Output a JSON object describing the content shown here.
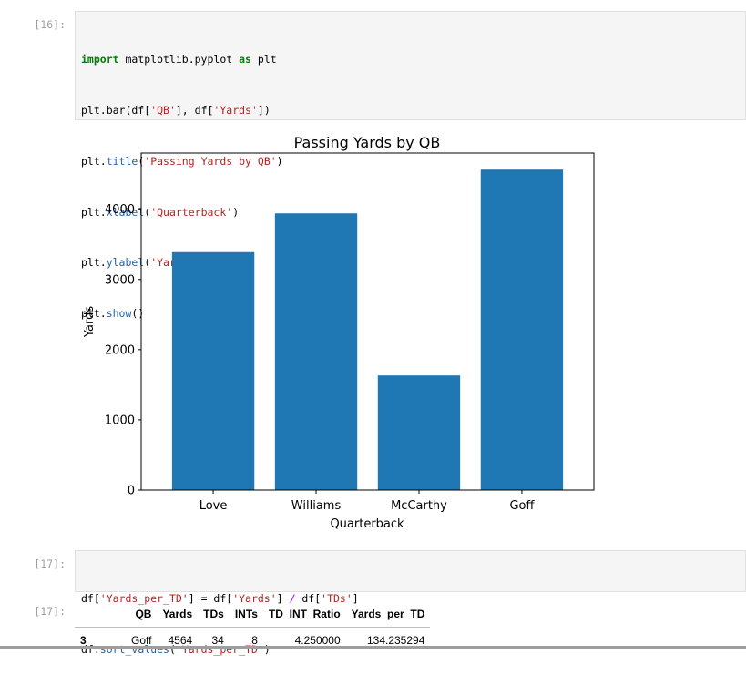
{
  "cells": {
    "cell16": {
      "prompt": "[16]:",
      "code": {
        "l1_kw1": "import",
        "l1_mid": " matplotlib.pyplot ",
        "l1_kw2": "as",
        "l1_end": " plt",
        "l2_a": "plt.bar(df[",
        "l2_s1": "'QB'",
        "l2_b": "], df[",
        "l2_s2": "'Yards'",
        "l2_c": "])",
        "l3_a": "plt.",
        "l3_fn": "title",
        "l3_b": "(",
        "l3_s": "'Passing Yards by QB'",
        "l3_c": ")",
        "l4_a": "plt.",
        "l4_fn": "xlabel",
        "l4_b": "(",
        "l4_s": "'Quarterback'",
        "l4_c": ")",
        "l5_a": "plt.",
        "l5_fn": "ylabel",
        "l5_b": "(",
        "l5_s": "'Yards'",
        "l5_c": ")",
        "l6_a": "plt.",
        "l6_fn": "show",
        "l6_b": "()"
      }
    },
    "cell17_in": {
      "prompt": "[17]:",
      "code": {
        "l1_a": "df[",
        "l1_s1": "'Yards_per_TD'",
        "l1_b": "] = df[",
        "l1_s2": "'Yards'",
        "l1_c": "] ",
        "l1_op": "/",
        "l1_d": " df[",
        "l1_s3": "'TDs'",
        "l1_e": "]",
        "l2_a": "df.",
        "l2_fn": "sort_values",
        "l2_b": "(",
        "l2_s": "'Yards_per_TD'",
        "l2_c": ")"
      }
    },
    "cell17_out": {
      "prompt": "[17]:",
      "table": {
        "columns": [
          "",
          "QB",
          "Yards",
          "TDs",
          "INTs",
          "TD_INT_Ratio",
          "Yards_per_TD"
        ],
        "rows": [
          [
            "3",
            "Goff",
            "4564",
            "34",
            "8",
            "4.250000",
            "134.235294"
          ]
        ]
      }
    }
  },
  "chart_data": {
    "type": "bar",
    "title": "Passing Yards by QB",
    "xlabel": "Quarterback",
    "ylabel": "Yards",
    "categories": [
      "Love",
      "Williams",
      "McCarthy",
      "Goff"
    ],
    "values": [
      3389,
      3941,
      1632,
      4564
    ],
    "ylim": [
      0,
      4800
    ],
    "yticks": [
      0,
      1000,
      2000,
      3000,
      4000
    ],
    "color": "#1f77b4",
    "grid": false
  }
}
